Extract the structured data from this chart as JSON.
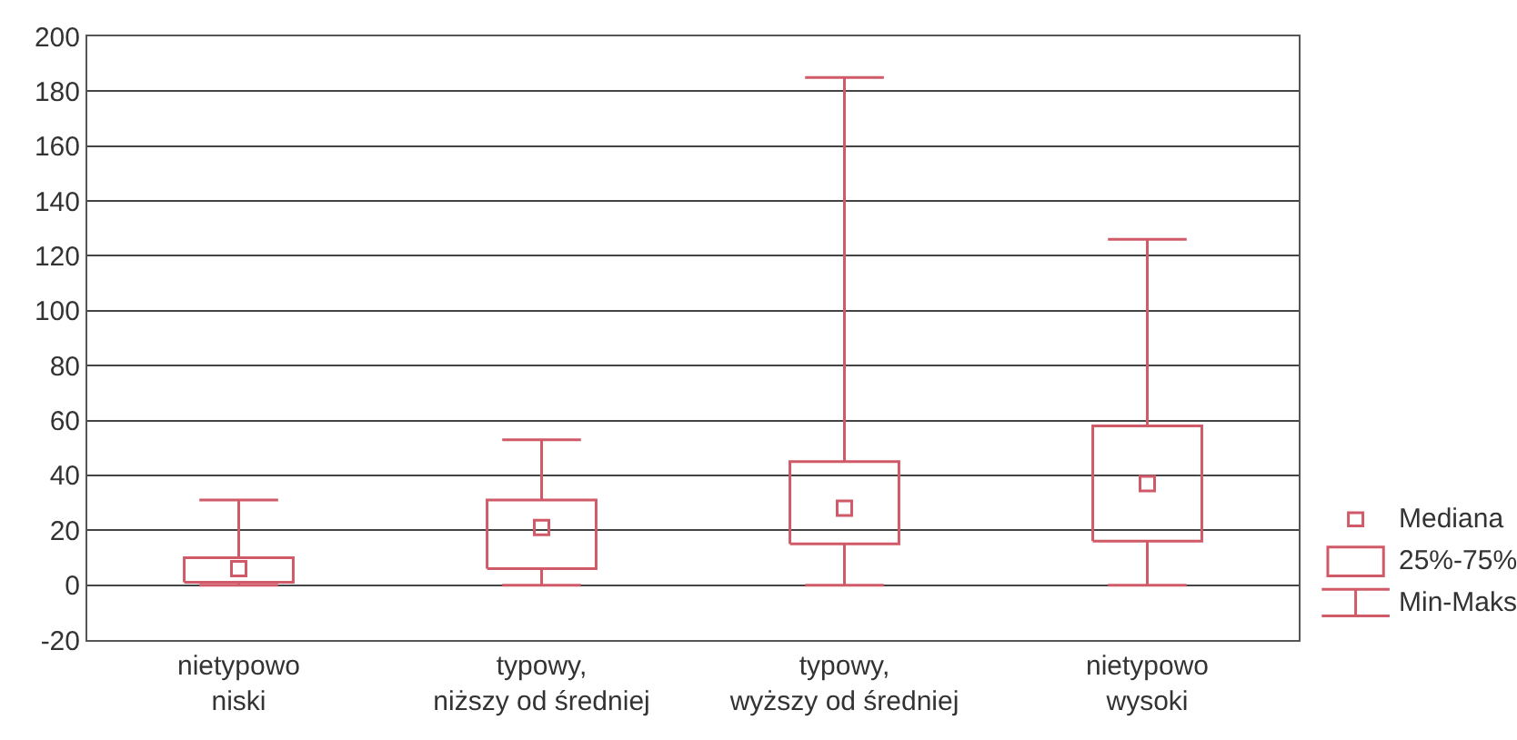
{
  "chart_data": {
    "type": "box",
    "categories": [
      "nietypowo\nniski",
      "typowy,\nniższy od średniej",
      "typowy,\nwyższy od średniej",
      "nietypowo\nwysoki"
    ],
    "boxes": [
      {
        "low": 0,
        "q1": 1,
        "median": 6,
        "q3": 10,
        "high": 31
      },
      {
        "low": 0,
        "q1": 6,
        "median": 21,
        "q3": 31,
        "high": 53
      },
      {
        "low": 0,
        "q1": 15,
        "median": 28,
        "q3": 45,
        "high": 185
      },
      {
        "low": 0,
        "q1": 16,
        "median": 37,
        "q3": 58,
        "high": 126
      }
    ],
    "color": "#d05a68",
    "ylim": [
      -20,
      200
    ],
    "yticks": [
      -20,
      0,
      20,
      40,
      60,
      80,
      100,
      120,
      140,
      160,
      180,
      200
    ],
    "grid": "y",
    "annotations": [
      "Mediana",
      "25%-75%",
      "Min-Maks"
    ]
  }
}
